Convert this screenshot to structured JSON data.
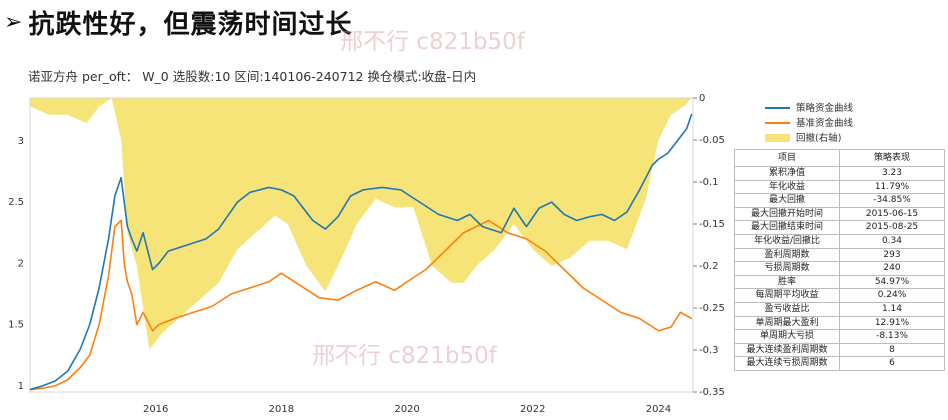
{
  "header": {
    "arrow": "➢",
    "title": "抗跌性好，但震荡时间过长",
    "subtitle": "诺亚方舟 per_oft： W_0 选股数:10 区间:140106-240712  换仓模式:收盘-日内"
  },
  "watermarks": [
    "邢不行 c821b50f",
    "邢不行 c821b50f"
  ],
  "colors": {
    "strategy": "#1f77b4",
    "benchmark": "#ff7f0e",
    "drawdown": "#f7e479"
  },
  "chart_data": {
    "type": "line",
    "xlabels": [
      "2016",
      "2018",
      "2020",
      "2022",
      "2024"
    ],
    "x_range": [
      2014.0,
      2024.55
    ],
    "left_axis": {
      "ticks": [
        1,
        1.5,
        2,
        2.5,
        3
      ],
      "range": [
        0.95,
        3.35
      ]
    },
    "right_axis": {
      "ticks": [
        0,
        -0.05,
        -0.1,
        -0.15,
        -0.2,
        -0.25,
        -0.3,
        -0.35
      ],
      "range": [
        -0.35,
        0
      ]
    },
    "legend_position": "upper-right",
    "series": [
      {
        "name": "策略资金曲线",
        "axis": "left",
        "x": [
          2014.0,
          2014.2,
          2014.4,
          2014.6,
          2014.8,
          2014.95,
          2015.1,
          2015.25,
          2015.35,
          2015.45,
          2015.5,
          2015.55,
          2015.62,
          2015.7,
          2015.8,
          2015.95,
          2016.05,
          2016.2,
          2016.5,
          2016.8,
          2017.0,
          2017.3,
          2017.5,
          2017.8,
          2018.0,
          2018.2,
          2018.5,
          2018.7,
          2018.9,
          2019.1,
          2019.3,
          2019.6,
          2019.9,
          2020.2,
          2020.5,
          2020.8,
          2021.0,
          2021.2,
          2021.5,
          2021.7,
          2021.9,
          2022.1,
          2022.3,
          2022.5,
          2022.7,
          2022.9,
          2023.1,
          2023.3,
          2023.5,
          2023.7,
          2023.9,
          2024.0,
          2024.15,
          2024.3,
          2024.45,
          2024.53
        ],
        "y": [
          0.97,
          1.0,
          1.04,
          1.12,
          1.3,
          1.5,
          1.8,
          2.2,
          2.55,
          2.7,
          2.5,
          2.3,
          2.2,
          2.1,
          2.25,
          1.95,
          2.0,
          2.1,
          2.15,
          2.2,
          2.28,
          2.5,
          2.58,
          2.62,
          2.6,
          2.55,
          2.35,
          2.28,
          2.38,
          2.55,
          2.6,
          2.62,
          2.6,
          2.5,
          2.4,
          2.35,
          2.4,
          2.3,
          2.25,
          2.45,
          2.3,
          2.45,
          2.5,
          2.4,
          2.35,
          2.38,
          2.4,
          2.35,
          2.42,
          2.6,
          2.8,
          2.85,
          2.9,
          3.0,
          3.1,
          3.22
        ]
      },
      {
        "name": "基准资金曲线",
        "axis": "left",
        "x": [
          2014.0,
          2014.2,
          2014.4,
          2014.6,
          2014.8,
          2014.95,
          2015.1,
          2015.25,
          2015.35,
          2015.45,
          2015.5,
          2015.55,
          2015.62,
          2015.7,
          2015.8,
          2015.95,
          2016.05,
          2016.3,
          2016.6,
          2016.9,
          2017.2,
          2017.5,
          2017.8,
          2018.0,
          2018.3,
          2018.6,
          2018.9,
          2019.2,
          2019.5,
          2019.8,
          2020.0,
          2020.3,
          2020.6,
          2020.9,
          2021.1,
          2021.3,
          2021.6,
          2021.9,
          2022.2,
          2022.5,
          2022.8,
          2023.1,
          2023.4,
          2023.7,
          2024.0,
          2024.2,
          2024.35,
          2024.53
        ],
        "y": [
          0.97,
          0.98,
          1.0,
          1.05,
          1.15,
          1.25,
          1.5,
          1.9,
          2.3,
          2.35,
          2.0,
          1.85,
          1.75,
          1.5,
          1.6,
          1.45,
          1.5,
          1.55,
          1.6,
          1.65,
          1.75,
          1.8,
          1.85,
          1.92,
          1.82,
          1.72,
          1.7,
          1.78,
          1.85,
          1.78,
          1.85,
          1.95,
          2.1,
          2.25,
          2.3,
          2.35,
          2.25,
          2.2,
          2.1,
          1.95,
          1.8,
          1.7,
          1.6,
          1.55,
          1.45,
          1.48,
          1.6,
          1.55
        ]
      },
      {
        "name": "回撤(右轴)",
        "axis": "right",
        "type": "area",
        "x": [
          2014.0,
          2014.3,
          2014.6,
          2014.9,
          2015.1,
          2015.3,
          2015.45,
          2015.55,
          2015.7,
          2015.9,
          2016.1,
          2016.4,
          2016.7,
          2017.0,
          2017.3,
          2017.6,
          2017.9,
          2018.1,
          2018.4,
          2018.7,
          2018.9,
          2019.2,
          2019.5,
          2019.8,
          2020.1,
          2020.4,
          2020.7,
          2020.9,
          2021.1,
          2021.4,
          2021.7,
          2022.0,
          2022.3,
          2022.6,
          2022.9,
          2023.2,
          2023.5,
          2023.8,
          2024.0,
          2024.2,
          2024.4,
          2024.53
        ],
        "y": [
          -0.01,
          -0.02,
          -0.02,
          -0.03,
          -0.01,
          0.0,
          -0.05,
          -0.16,
          -0.2,
          -0.3,
          -0.28,
          -0.26,
          -0.24,
          -0.22,
          -0.18,
          -0.16,
          -0.14,
          -0.15,
          -0.2,
          -0.23,
          -0.2,
          -0.15,
          -0.12,
          -0.13,
          -0.13,
          -0.2,
          -0.22,
          -0.22,
          -0.2,
          -0.18,
          -0.15,
          -0.18,
          -0.2,
          -0.19,
          -0.17,
          -0.17,
          -0.18,
          -0.12,
          -0.05,
          -0.02,
          -0.01,
          0.0
        ]
      }
    ]
  },
  "stats_table": {
    "header": [
      "项目",
      "策略表现"
    ],
    "rows": [
      [
        "累积净值",
        "3.23"
      ],
      [
        "年化收益",
        "11.79%"
      ],
      [
        "最大回撤",
        "-34.85%"
      ],
      [
        "最大回撤开始时间",
        "2015-06-15"
      ],
      [
        "最大回撤结束时间",
        "2015-08-25"
      ],
      [
        "年化收益/回撤比",
        "0.34"
      ],
      [
        "盈利周期数",
        "293"
      ],
      [
        "亏损周期数",
        "240"
      ],
      [
        "胜率",
        "54.97%"
      ],
      [
        "每周期平均收益",
        "0.24%"
      ],
      [
        "盈亏收益比",
        "1.14"
      ],
      [
        "单周期最大盈利",
        "12.91%"
      ],
      [
        "单周期大亏损",
        "-8.13%"
      ],
      [
        "最大连续盈利周期数",
        "8"
      ],
      [
        "最大连续亏损周期数",
        "6"
      ]
    ]
  }
}
